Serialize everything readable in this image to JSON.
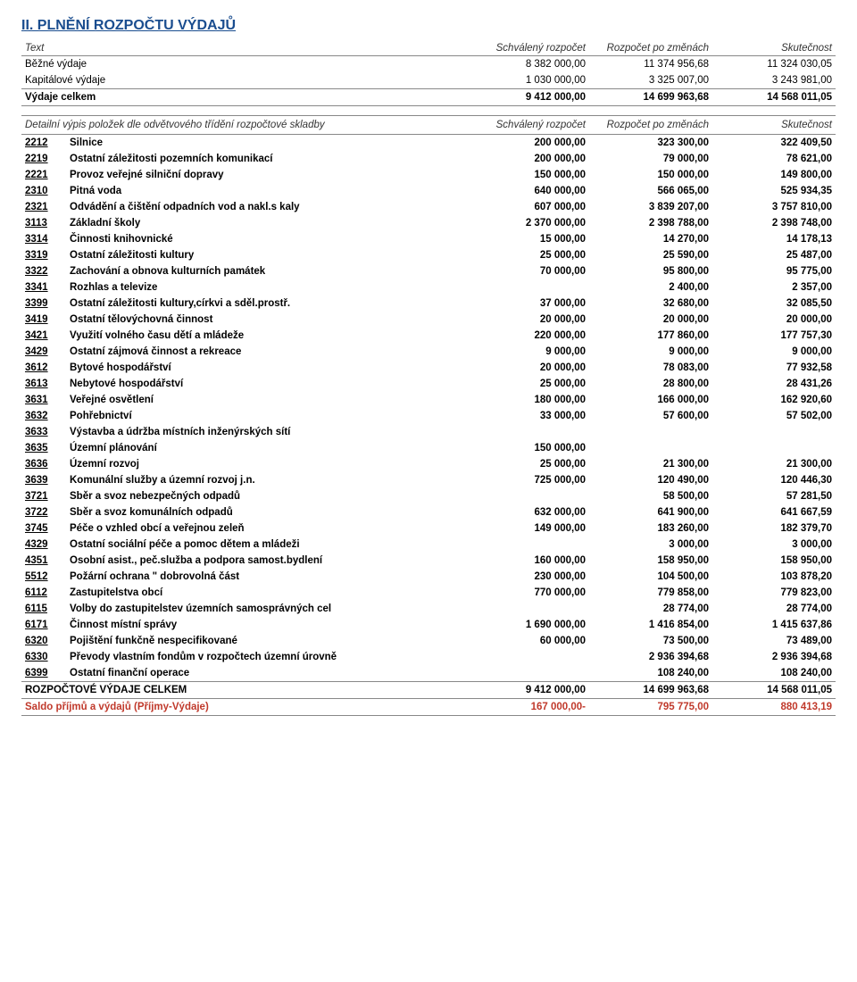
{
  "title": "II. PLNĚNÍ ROZPOČTU VÝDAJŮ",
  "summary": {
    "header": {
      "c0": "Text",
      "c1": "Schválený rozpočet",
      "c2": "Rozpočet po změnách",
      "c3": "Skutečnost"
    },
    "rows": [
      {
        "name": "Běžné výdaje",
        "v1": "8 382 000,00",
        "v2": "11 374 956,68",
        "v3": "11 324 030,05"
      },
      {
        "name": "Kapitálové výdaje",
        "v1": "1 030 000,00",
        "v2": "3 325 007,00",
        "v3": "3 243 981,00"
      }
    ],
    "total": {
      "name": "Výdaje celkem",
      "v1": "9 412 000,00",
      "v2": "14 699 963,68",
      "v3": "14 568 011,05"
    }
  },
  "detail": {
    "header": {
      "c0": "Detailní výpis položek dle odvětvového třídění rozpočtové skladby",
      "c1": "Schválený rozpočet",
      "c2": "Rozpočet po změnách",
      "c3": "Skutečnost"
    },
    "rows": [
      {
        "code": "2212",
        "name": "Silnice",
        "v1": "200 000,00",
        "v2": "323 300,00",
        "v3": "322 409,50"
      },
      {
        "code": "2219",
        "name": "Ostatní záležitosti pozemních komunikací",
        "v1": "200 000,00",
        "v2": "79 000,00",
        "v3": "78 621,00"
      },
      {
        "code": "2221",
        "name": "Provoz veřejné silniční dopravy",
        "v1": "150 000,00",
        "v2": "150 000,00",
        "v3": "149 800,00"
      },
      {
        "code": "2310",
        "name": "Pitná voda",
        "v1": "640 000,00",
        "v2": "566 065,00",
        "v3": "525 934,35"
      },
      {
        "code": "2321",
        "name": "Odvádění a čištění odpadních vod a nakl.s kaly",
        "v1": "607 000,00",
        "v2": "3 839 207,00",
        "v3": "3 757 810,00"
      },
      {
        "code": "3113",
        "name": "Základní školy",
        "v1": "2 370 000,00",
        "v2": "2 398 788,00",
        "v3": "2 398 748,00"
      },
      {
        "code": "3314",
        "name": "Činnosti knihovnické",
        "v1": "15 000,00",
        "v2": "14 270,00",
        "v3": "14 178,13"
      },
      {
        "code": "3319",
        "name": "Ostatní záležitosti kultury",
        "v1": "25 000,00",
        "v2": "25 590,00",
        "v3": "25 487,00"
      },
      {
        "code": "3322",
        "name": "Zachování a obnova kulturních památek",
        "v1": "70 000,00",
        "v2": "95 800,00",
        "v3": "95 775,00"
      },
      {
        "code": "3341",
        "name": "Rozhlas a televize",
        "v1": "",
        "v2": "2 400,00",
        "v3": "2 357,00"
      },
      {
        "code": "3399",
        "name": "Ostatní záležitosti kultury,církvi a sděl.prostř.",
        "v1": "37 000,00",
        "v2": "32 680,00",
        "v3": "32 085,50"
      },
      {
        "code": "3419",
        "name": "Ostatní tělovýchovná činnost",
        "v1": "20 000,00",
        "v2": "20 000,00",
        "v3": "20 000,00"
      },
      {
        "code": "3421",
        "name": "Využití volného času dětí a mládeže",
        "v1": "220 000,00",
        "v2": "177 860,00",
        "v3": "177 757,30"
      },
      {
        "code": "3429",
        "name": "Ostatní zájmová činnost a rekreace",
        "v1": "9 000,00",
        "v2": "9 000,00",
        "v3": "9 000,00"
      },
      {
        "code": "3612",
        "name": "Bytové hospodářství",
        "v1": "20 000,00",
        "v2": "78 083,00",
        "v3": "77 932,58"
      },
      {
        "code": "3613",
        "name": "Nebytové hospodářství",
        "v1": "25 000,00",
        "v2": "28 800,00",
        "v3": "28 431,26"
      },
      {
        "code": "3631",
        "name": "Veřejné osvětlení",
        "v1": "180 000,00",
        "v2": "166 000,00",
        "v3": "162 920,60"
      },
      {
        "code": "3632",
        "name": "Pohřebnictví",
        "v1": "33 000,00",
        "v2": "57 600,00",
        "v3": "57 502,00"
      },
      {
        "code": "3633",
        "name": "Výstavba a údržba místních inženýrských sítí",
        "v1": "",
        "v2": "",
        "v3": ""
      },
      {
        "code": "3635",
        "name": "Územní plánování",
        "v1": "150 000,00",
        "v2": "",
        "v3": ""
      },
      {
        "code": "3636",
        "name": "Územní rozvoj",
        "v1": "25 000,00",
        "v2": "21 300,00",
        "v3": "21 300,00"
      },
      {
        "code": "3639",
        "name": "Komunální služby a územní rozvoj j.n.",
        "v1": "725 000,00",
        "v2": "120 490,00",
        "v3": "120 446,30"
      },
      {
        "code": "3721",
        "name": "Sběr a svoz nebezpečných odpadů",
        "v1": "",
        "v2": "58 500,00",
        "v3": "57 281,50"
      },
      {
        "code": "3722",
        "name": "Sběr a svoz komunálních odpadů",
        "v1": "632 000,00",
        "v2": "641 900,00",
        "v3": "641 667,59"
      },
      {
        "code": "3745",
        "name": "Péče o vzhled obcí a veřejnou zeleň",
        "v1": "149 000,00",
        "v2": "183 260,00",
        "v3": "182 379,70"
      },
      {
        "code": "4329",
        "name": "Ostatní sociální péče a pomoc dětem a mládeži",
        "v1": "",
        "v2": "3 000,00",
        "v3": "3 000,00"
      },
      {
        "code": "4351",
        "name": "Osobní asist., peč.služba a podpora samost.bydlení",
        "v1": "160 000,00",
        "v2": "158 950,00",
        "v3": "158 950,00"
      },
      {
        "code": "5512",
        "name": "Požární ochrana \" dobrovolná část",
        "v1": "230 000,00",
        "v2": "104 500,00",
        "v3": "103 878,20"
      },
      {
        "code": "6112",
        "name": "Zastupitelstva obcí",
        "v1": "770 000,00",
        "v2": "779 858,00",
        "v3": "779 823,00"
      },
      {
        "code": "6115",
        "name": "Volby do zastupitelstev územních samosprávných cel",
        "v1": "",
        "v2": "28 774,00",
        "v3": "28 774,00"
      },
      {
        "code": "6171",
        "name": "Činnost místní správy",
        "v1": "1 690 000,00",
        "v2": "1 416 854,00",
        "v3": "1 415 637,86"
      },
      {
        "code": "6320",
        "name": "Pojištění funkčně nespecifikované",
        "v1": "60 000,00",
        "v2": "73 500,00",
        "v3": "73 489,00"
      },
      {
        "code": "6330",
        "name": "Převody vlastním fondům v rozpočtech územní úrovně",
        "v1": "",
        "v2": "2 936 394,68",
        "v3": "2 936 394,68"
      },
      {
        "code": "6399",
        "name": "Ostatní finanční operace",
        "v1": "",
        "v2": "108 240,00",
        "v3": "108 240,00"
      }
    ],
    "totals": [
      {
        "name": "ROZPOČTOVÉ VÝDAJE CELKEM",
        "v1": "9 412 000,00",
        "v2": "14 699 963,68",
        "v3": "14 568 011,05",
        "style": "final"
      },
      {
        "name": "Saldo příjmů a výdajů (Příjmy-Výdaje)",
        "v1": "167 000,00-",
        "v2": "795 775,00",
        "v3": "880 413,19",
        "style": "red"
      }
    ]
  }
}
